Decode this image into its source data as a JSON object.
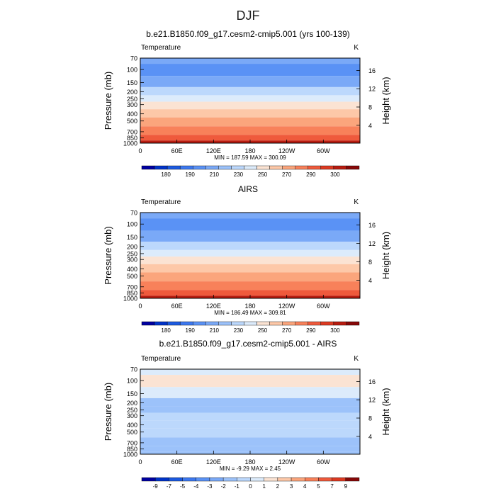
{
  "suptitle": "DJF",
  "chart_data": [
    {
      "type": "heatmap",
      "title": "b.e21.B1850.f09_g17.cesm2-cmip5.001 (yrs 100-139)",
      "left_label": "Temperature",
      "right_label": "K",
      "ylabel": "Pressure (mb)",
      "ylabel_right": "Height (km)",
      "y_ticks": [
        "70",
        "100",
        "150",
        "200",
        "250",
        "300",
        "400",
        "500",
        "700",
        "850",
        "1000"
      ],
      "y_right_ticks": [
        "16",
        "12",
        "8",
        "4"
      ],
      "x_ticks": [
        "0",
        "60E",
        "120E",
        "180",
        "120W",
        "60W"
      ],
      "stats": "MIN = 187.59   MAX = 300.09",
      "colorbar_labels": [
        "180",
        "190",
        "210",
        "230",
        "250",
        "270",
        "290",
        "300"
      ],
      "colorbar_levels": [
        175,
        180,
        185,
        190,
        200,
        210,
        220,
        230,
        240,
        250,
        260,
        270,
        280,
        290,
        295,
        300
      ],
      "colorbar_colors": [
        "#0000a0",
        "#0033c8",
        "#1c5ae0",
        "#3d78ef",
        "#5a92f5",
        "#7aa9f7",
        "#9cc2fa",
        "#bcd8fc",
        "#dcebfb",
        "#fbe3d3",
        "#fdc8a8",
        "#fba57c",
        "#f8815a",
        "#ef5a3c",
        "#dd3a22",
        "#b81c10",
        "#870808"
      ],
      "profile": [
        {
          "p": 70,
          "v": 205
        },
        {
          "p": 100,
          "v": 195
        },
        {
          "p": 150,
          "v": 208
        },
        {
          "p": 200,
          "v": 220
        },
        {
          "p": 250,
          "v": 230
        },
        {
          "p": 300,
          "v": 240
        },
        {
          "p": 400,
          "v": 255
        },
        {
          "p": 500,
          "v": 265
        },
        {
          "p": 700,
          "v": 278
        },
        {
          "p": 850,
          "v": 287
        },
        {
          "p": 1000,
          "v": 296
        }
      ]
    },
    {
      "type": "heatmap",
      "title": "AIRS",
      "left_label": "Temperature",
      "right_label": "K",
      "ylabel": "Pressure (mb)",
      "ylabel_right": "Height (km)",
      "y_ticks": [
        "70",
        "100",
        "150",
        "200",
        "250",
        "300",
        "400",
        "500",
        "700",
        "850",
        "1000"
      ],
      "y_right_ticks": [
        "16",
        "12",
        "8",
        "4"
      ],
      "x_ticks": [
        "0",
        "60E",
        "120E",
        "180",
        "120W",
        "60W"
      ],
      "stats": "MIN = 186.49   MAX = 309.81",
      "colorbar_labels": [
        "180",
        "190",
        "210",
        "230",
        "250",
        "270",
        "290",
        "300"
      ],
      "colorbar_levels": [
        175,
        180,
        185,
        190,
        200,
        210,
        220,
        230,
        240,
        250,
        260,
        270,
        280,
        290,
        295,
        300
      ],
      "colorbar_colors": [
        "#0000a0",
        "#0033c8",
        "#1c5ae0",
        "#3d78ef",
        "#5a92f5",
        "#7aa9f7",
        "#9cc2fa",
        "#bcd8fc",
        "#dcebfb",
        "#fbe3d3",
        "#fdc8a8",
        "#fba57c",
        "#f8815a",
        "#ef5a3c",
        "#dd3a22",
        "#b81c10",
        "#870808"
      ],
      "profile": [
        {
          "p": 70,
          "v": 205
        },
        {
          "p": 100,
          "v": 195
        },
        {
          "p": 150,
          "v": 208
        },
        {
          "p": 200,
          "v": 220
        },
        {
          "p": 250,
          "v": 230
        },
        {
          "p": 300,
          "v": 240
        },
        {
          "p": 400,
          "v": 255
        },
        {
          "p": 500,
          "v": 265
        },
        {
          "p": 700,
          "v": 278
        },
        {
          "p": 850,
          "v": 287
        },
        {
          "p": 1000,
          "v": 296
        }
      ]
    },
    {
      "type": "heatmap",
      "title": "b.e21.B1850.f09_g17.cesm2-cmip5.001 - AIRS",
      "left_label": "Temperature",
      "right_label": "K",
      "ylabel": "Pressure (mb)",
      "ylabel_right": "Height (km)",
      "y_ticks": [
        "70",
        "100",
        "150",
        "200",
        "250",
        "300",
        "400",
        "500",
        "700",
        "850",
        "1000"
      ],
      "y_right_ticks": [
        "16",
        "12",
        "8",
        "4"
      ],
      "x_ticks": [
        "0",
        "60E",
        "120E",
        "180",
        "120W",
        "60W"
      ],
      "stats": "MIN = -9.29   MAX =    2.45",
      "colorbar_labels": [
        "-9",
        "-7",
        "-5",
        "-4",
        "-3",
        "-2",
        "-1",
        "0",
        "1",
        "2",
        "3",
        "4",
        "5",
        "7",
        "9"
      ],
      "colorbar_levels": [
        -9,
        -7,
        -5,
        -4,
        -3,
        -2,
        -1,
        0,
        1,
        2,
        3,
        4,
        5,
        7,
        9
      ],
      "colorbar_colors": [
        "#0000a0",
        "#0033c8",
        "#1c5ae0",
        "#3d78ef",
        "#5a92f5",
        "#7aa9f7",
        "#9cc2fa",
        "#bcd8fc",
        "#dcebfb",
        "#fbe3d3",
        "#fdc8a8",
        "#fba57c",
        "#f8815a",
        "#ef5a3c",
        "#dd3a22",
        "#870808"
      ],
      "profile": [
        {
          "p": 70,
          "v": 0.5
        },
        {
          "p": 100,
          "v": 1.5
        },
        {
          "p": 150,
          "v": 0.3
        },
        {
          "p": 200,
          "v": -1.5
        },
        {
          "p": 250,
          "v": -1.2
        },
        {
          "p": 300,
          "v": -0.8
        },
        {
          "p": 400,
          "v": -0.6
        },
        {
          "p": 500,
          "v": -0.8
        },
        {
          "p": 700,
          "v": -1.2
        },
        {
          "p": 850,
          "v": -1.8
        },
        {
          "p": 1000,
          "v": -1.5
        }
      ]
    }
  ]
}
